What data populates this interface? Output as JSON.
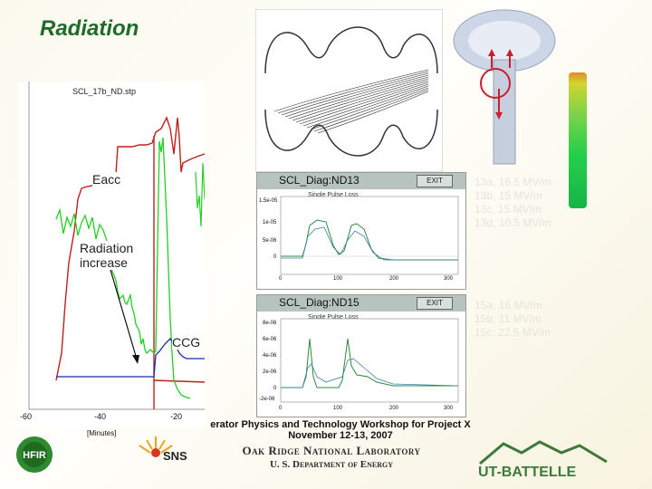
{
  "slide": {
    "title": "Radiation"
  },
  "left_plot": {
    "file_label": "SCL_17b_ND.stp",
    "annotations": {
      "eacc": "Eacc",
      "radiation_line1": "Radiation",
      "radiation_line2": "increase",
      "ccg": "CCG"
    },
    "x_ticks": [
      "-60",
      "-40",
      "-20"
    ],
    "x_unit_label": "[Minutes]",
    "colors": {
      "eacc": "#c0201c",
      "radiation": "#22d022",
      "ccg": "#1a2aa8"
    }
  },
  "diag_top": {
    "title": "SCL_Diag:ND13",
    "exit_label": "EXIT",
    "caption": "Single Pulse Loss",
    "y_ticks": [
      "1.5e-05",
      "1e-05",
      "5e-06",
      "0"
    ],
    "x_ticks": [
      "0",
      "100",
      "200",
      "300"
    ],
    "grades": [
      "13a, 16.5 MV/m",
      "13b, 15 MV/m",
      "13c, 15 MV/m",
      "13d, 10.5 MV/m"
    ]
  },
  "diag_bottom": {
    "title": "SCL_Diag:ND15",
    "exit_label": "EXIT",
    "caption": "Single Pulse Loss",
    "y_ticks": [
      "8e-06",
      "6e-06",
      "4e-06",
      "2e-06",
      "0",
      "-2e-06"
    ],
    "x_ticks": [
      "0",
      "100",
      "200",
      "300"
    ],
    "grades": [
      "15a, 16 MV/m",
      "15b, 11 MV/m",
      "15c, 22.5 MV/m"
    ]
  },
  "footer": {
    "workshop_line1": "erator Physics and Technology Workshop for Project X",
    "workshop_line2": "November 12-13, 2007",
    "lab_name": "Oak Ridge National Laboratory",
    "department": "U. S. Department of Energy",
    "logo_hfir": "HFIR",
    "logo_sns": "SNS",
    "logo_ut": "UT-BATTELLE"
  }
}
